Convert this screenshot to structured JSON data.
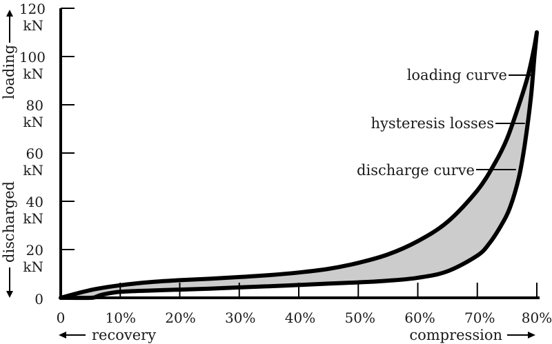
{
  "chart_data": {
    "type": "line",
    "x_ticks": [
      "0",
      "10%",
      "20%",
      "30%",
      "40%",
      "50%",
      "60%",
      "70%",
      "80%"
    ],
    "y_ticks": [
      {
        "value": 0,
        "label": "0",
        "unit": ""
      },
      {
        "value": 20,
        "label": "20",
        "unit": "kN"
      },
      {
        "value": 40,
        "label": "40",
        "unit": "kN"
      },
      {
        "value": 60,
        "label": "60",
        "unit": "kN"
      },
      {
        "value": 80,
        "label": "80",
        "unit": "kN"
      },
      {
        "value": 100,
        "label": "100",
        "unit": "kN"
      },
      {
        "value": 120,
        "label": "120",
        "unit": "kN"
      }
    ],
    "xlim": [
      0,
      80
    ],
    "ylim": [
      0,
      120
    ],
    "x_axis_words": {
      "left": "recovery",
      "right": "compression"
    },
    "y_axis_words": {
      "top": "loading",
      "bottom": "discharged"
    },
    "series": [
      {
        "name": "loading curve",
        "x": [
          0,
          3,
          6,
          10,
          15,
          20,
          25,
          30,
          35,
          40,
          45,
          50,
          55,
          60,
          65,
          70,
          73,
          75,
          77,
          78.5,
          79.5,
          80
        ],
        "y": [
          0,
          2,
          3.7,
          5.2,
          6.5,
          7.3,
          7.9,
          8.6,
          9.4,
          10.5,
          12,
          14.5,
          18,
          23.5,
          31.5,
          44.5,
          56,
          66,
          80,
          92,
          103,
          110
        ]
      },
      {
        "name": "discharge curve",
        "x": [
          0,
          5,
          6,
          7,
          10,
          15,
          20,
          25,
          30,
          35,
          40,
          45,
          50,
          55,
          60,
          65,
          70,
          72,
          74,
          75.5,
          77,
          78,
          79,
          79.6,
          80
        ],
        "y": [
          0,
          0,
          0.5,
          1.3,
          2.5,
          3,
          3.4,
          3.8,
          4.3,
          4.8,
          5.3,
          5.9,
          6.4,
          7.1,
          8.3,
          11,
          17.5,
          22.5,
          30,
          37.5,
          50,
          64,
          83,
          100,
          110
        ]
      }
    ],
    "fill_between": "hysteresis losses",
    "annotations": [
      {
        "text": "loading curve",
        "x": 79.2,
        "y": 92
      },
      {
        "text": "hysteresis losses",
        "x": 78,
        "y": 72
      },
      {
        "text": "discharge curve",
        "x": 76.5,
        "y": 53
      }
    ]
  },
  "colors": {
    "curve": "#000000",
    "fill": "#cccccc",
    "axis": "#000000"
  }
}
